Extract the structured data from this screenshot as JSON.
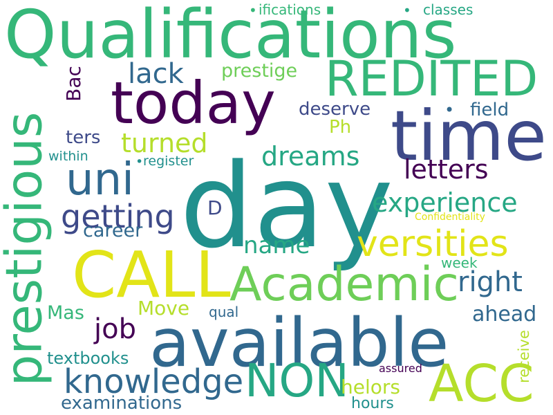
{
  "colors": {
    "dark_purple": "#440154",
    "indigo": "#3e4a89",
    "steel_blue": "#31688e",
    "teal": "#21908d",
    "green_teal": "#26a784",
    "green": "#35b779",
    "lime": "#6ece58",
    "yellow_green": "#b5de2b",
    "yellow": "#e2e418"
  },
  "words": {
    "qualifications": "Qualifications",
    "ifications": "ifications",
    "classes": "classes",
    "today": "today",
    "redited": "REDITED",
    "time": "time",
    "lack": "lack",
    "prestige": "prestige",
    "bac": "Bac",
    "deserve": "deserve",
    "field": "field",
    "prestigious": "prestigious",
    "ph": "Ph",
    "ters": "ters",
    "turned": "turned",
    "dreams": "dreams",
    "within": "within",
    "register": "register",
    "letters": "letters",
    "uni": "uni",
    "day": "day",
    "experience": "experience",
    "d": "D",
    "getting": "getting",
    "confidentiality": "Confidentiality",
    "career": "career",
    "name": "name",
    "versities": "versities",
    "call": "CALL",
    "academic": "Academic",
    "week": "week",
    "right": "right",
    "mas": "Mas",
    "move": "Move",
    "qual": "qual",
    "ahead": "ahead",
    "job": "job",
    "available": "available",
    "receive": "receive",
    "textbooks": "textbooks",
    "assured": "assured",
    "knowledge": "knowledge",
    "non": "NON",
    "acc": "ACC",
    "helors": "helors",
    "examinations": "examinations",
    "hours": "hours"
  }
}
